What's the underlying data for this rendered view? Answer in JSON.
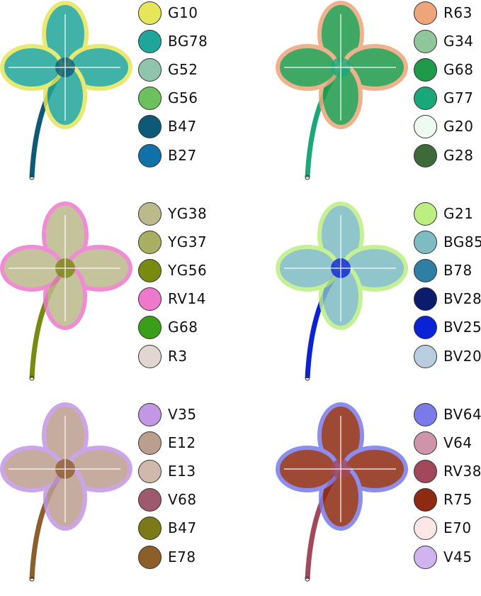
{
  "panels": [
    {
      "swatches": [
        {
          "code": "G10",
          "color": "#e6e65a"
        },
        {
          "code": "BG78",
          "color": "#1fa59a"
        },
        {
          "code": "G52",
          "color": "#8fc4ad"
        },
        {
          "code": "G56",
          "color": "#6cc05e"
        },
        {
          "code": "B47",
          "color": "#0c5a78"
        },
        {
          "code": "B27",
          "color": "#1070a8"
        }
      ]
    },
    {
      "swatches": [
        {
          "code": "R63",
          "color": "#eea57a"
        },
        {
          "code": "G34",
          "color": "#8fc79a"
        },
        {
          "code": "G68",
          "color": "#1e9a4a"
        },
        {
          "code": "G77",
          "color": "#1aa77a"
        },
        {
          "code": "G20",
          "color": "#eefcef"
        },
        {
          "code": "G28",
          "color": "#3c6a38"
        }
      ]
    },
    {
      "swatches": [
        {
          "code": "YG38",
          "color": "#bcb98a"
        },
        {
          "code": "YG37",
          "color": "#a8ae62"
        },
        {
          "code": "YG56",
          "color": "#788a10"
        },
        {
          "code": "RV14",
          "color": "#ee78cc"
        },
        {
          "code": "G68",
          "color": "#3a9e18"
        },
        {
          "code": "R3",
          "color": "#e2d6d0"
        }
      ]
    },
    {
      "swatches": [
        {
          "code": "G21",
          "color": "#bcee82"
        },
        {
          "code": "BG85",
          "color": "#7ebcc4"
        },
        {
          "code": "B78",
          "color": "#2e7ea6"
        },
        {
          "code": "BV28",
          "color": "#0c1c6c"
        },
        {
          "code": "BV25",
          "color": "#0a22d6"
        },
        {
          "code": "BV20",
          "color": "#b8cee0"
        }
      ]
    },
    {
      "swatches": [
        {
          "code": "V35",
          "color": "#c496e6"
        },
        {
          "code": "E12",
          "color": "#bc9e8e"
        },
        {
          "code": "E13",
          "color": "#d0b8aa"
        },
        {
          "code": "V68",
          "color": "#9c5a6c"
        },
        {
          "code": "B47",
          "color": "#7c7a18"
        },
        {
          "code": "E78",
          "color": "#8e5e2a"
        }
      ]
    },
    {
      "swatches": [
        {
          "code": "BV64",
          "color": "#7a7aea"
        },
        {
          "code": "V64",
          "color": "#d094aa"
        },
        {
          "code": "RV38",
          "color": "#a2485a"
        },
        {
          "code": "R75",
          "color": "#8e2a10"
        },
        {
          "code": "E70",
          "color": "#fbe8e6"
        },
        {
          "code": "V45",
          "color": "#d0b4f0"
        }
      ]
    }
  ]
}
